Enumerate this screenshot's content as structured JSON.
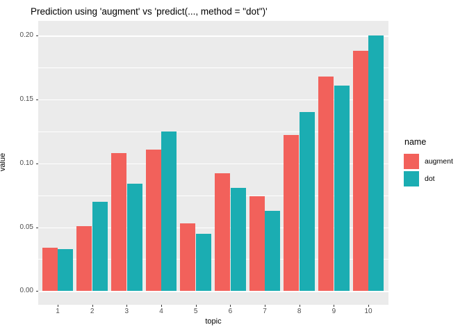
{
  "chart_data": {
    "type": "bar",
    "title": "Prediction using 'augment' vs 'predict(..., method = \"dot\")'",
    "xlabel": "topic",
    "ylabel": "value",
    "legend_title": "name",
    "legend_position": "right",
    "grid": true,
    "colors": {
      "panel_background": "#EBEBEB",
      "gridline": "#FFFFFF",
      "tick_text": "#4D4D4D",
      "axis_title_text": "#000000"
    },
    "categories": [
      "1",
      "2",
      "3",
      "4",
      "5",
      "6",
      "7",
      "8",
      "9",
      "10"
    ],
    "series": [
      {
        "name": "augment",
        "color": "#F2615B",
        "values": [
          0.034,
          0.051,
          0.108,
          0.111,
          0.053,
          0.092,
          0.074,
          0.122,
          0.168,
          0.188
        ]
      },
      {
        "name": "dot",
        "color": "#1BADB2",
        "values": [
          0.033,
          0.07,
          0.084,
          0.125,
          0.045,
          0.081,
          0.063,
          0.14,
          0.161,
          0.2
        ]
      }
    ],
    "y_axis": {
      "ticks": [
        {
          "label": "0.00",
          "value": 0.0
        },
        {
          "label": "0.05",
          "value": 0.05
        },
        {
          "label": "0.10",
          "value": 0.1
        },
        {
          "label": "0.15",
          "value": 0.15
        },
        {
          "label": "0.20",
          "value": 0.2
        }
      ],
      "minor_ticks": [
        0.025,
        0.075,
        0.125,
        0.175
      ],
      "range": [
        -0.0105,
        0.2115
      ]
    }
  }
}
